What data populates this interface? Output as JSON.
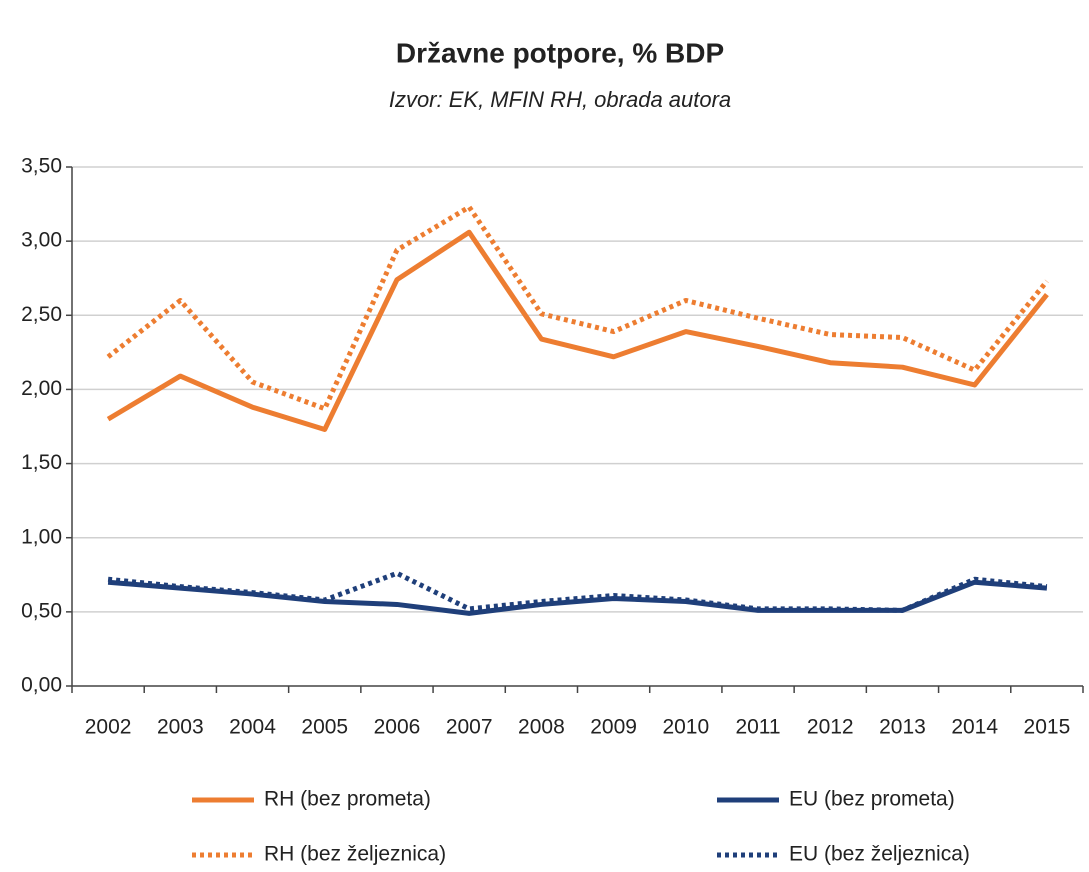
{
  "chart_data": {
    "type": "line",
    "title": "Državne potpore, % BDP",
    "subtitle": "Izvor: EK, MFIN RH, obrada autora",
    "categories": [
      "2002",
      "2003",
      "2004",
      "2005",
      "2006",
      "2007",
      "2008",
      "2009",
      "2010",
      "2011",
      "2012",
      "2013",
      "2014",
      "2015"
    ],
    "series": [
      {
        "name": "RH (bez prometa)",
        "color": "#ed7d31",
        "style": "solid",
        "values": [
          1.8,
          2.09,
          1.88,
          1.73,
          2.74,
          3.06,
          2.34,
          2.22,
          2.39,
          2.29,
          2.18,
          2.15,
          2.03,
          2.64
        ]
      },
      {
        "name": "EU (bez prometa)",
        "color": "#1f3f7a",
        "style": "solid",
        "values": [
          0.7,
          0.66,
          0.62,
          0.57,
          0.55,
          0.49,
          0.55,
          0.59,
          0.57,
          0.51,
          0.51,
          0.51,
          0.7,
          0.66
        ]
      },
      {
        "name": "RH (bez željeznica)",
        "color": "#ed7d31",
        "style": "dotted",
        "values": [
          2.22,
          2.6,
          2.05,
          1.87,
          2.94,
          3.23,
          2.51,
          2.39,
          2.6,
          2.48,
          2.37,
          2.35,
          2.13,
          2.73
        ]
      },
      {
        "name": "EU (bez željeznica)",
        "color": "#1f3f7a",
        "style": "dotted",
        "values": [
          0.72,
          0.67,
          0.63,
          0.58,
          0.76,
          0.52,
          0.57,
          0.61,
          0.58,
          0.52,
          0.52,
          0.51,
          0.72,
          0.67
        ]
      }
    ],
    "ylim": [
      0,
      3.5
    ],
    "yticks": [
      {
        "value": 0,
        "label": "0,00"
      },
      {
        "value": 0.5,
        "label": "0,50"
      },
      {
        "value": 1,
        "label": "1,00"
      },
      {
        "value": 1.5,
        "label": "1,50"
      },
      {
        "value": 2,
        "label": "2,00"
      },
      {
        "value": 2.5,
        "label": "2,50"
      },
      {
        "value": 3,
        "label": "3,00"
      },
      {
        "value": 3.5,
        "label": "3,50"
      }
    ],
    "grid": true
  }
}
